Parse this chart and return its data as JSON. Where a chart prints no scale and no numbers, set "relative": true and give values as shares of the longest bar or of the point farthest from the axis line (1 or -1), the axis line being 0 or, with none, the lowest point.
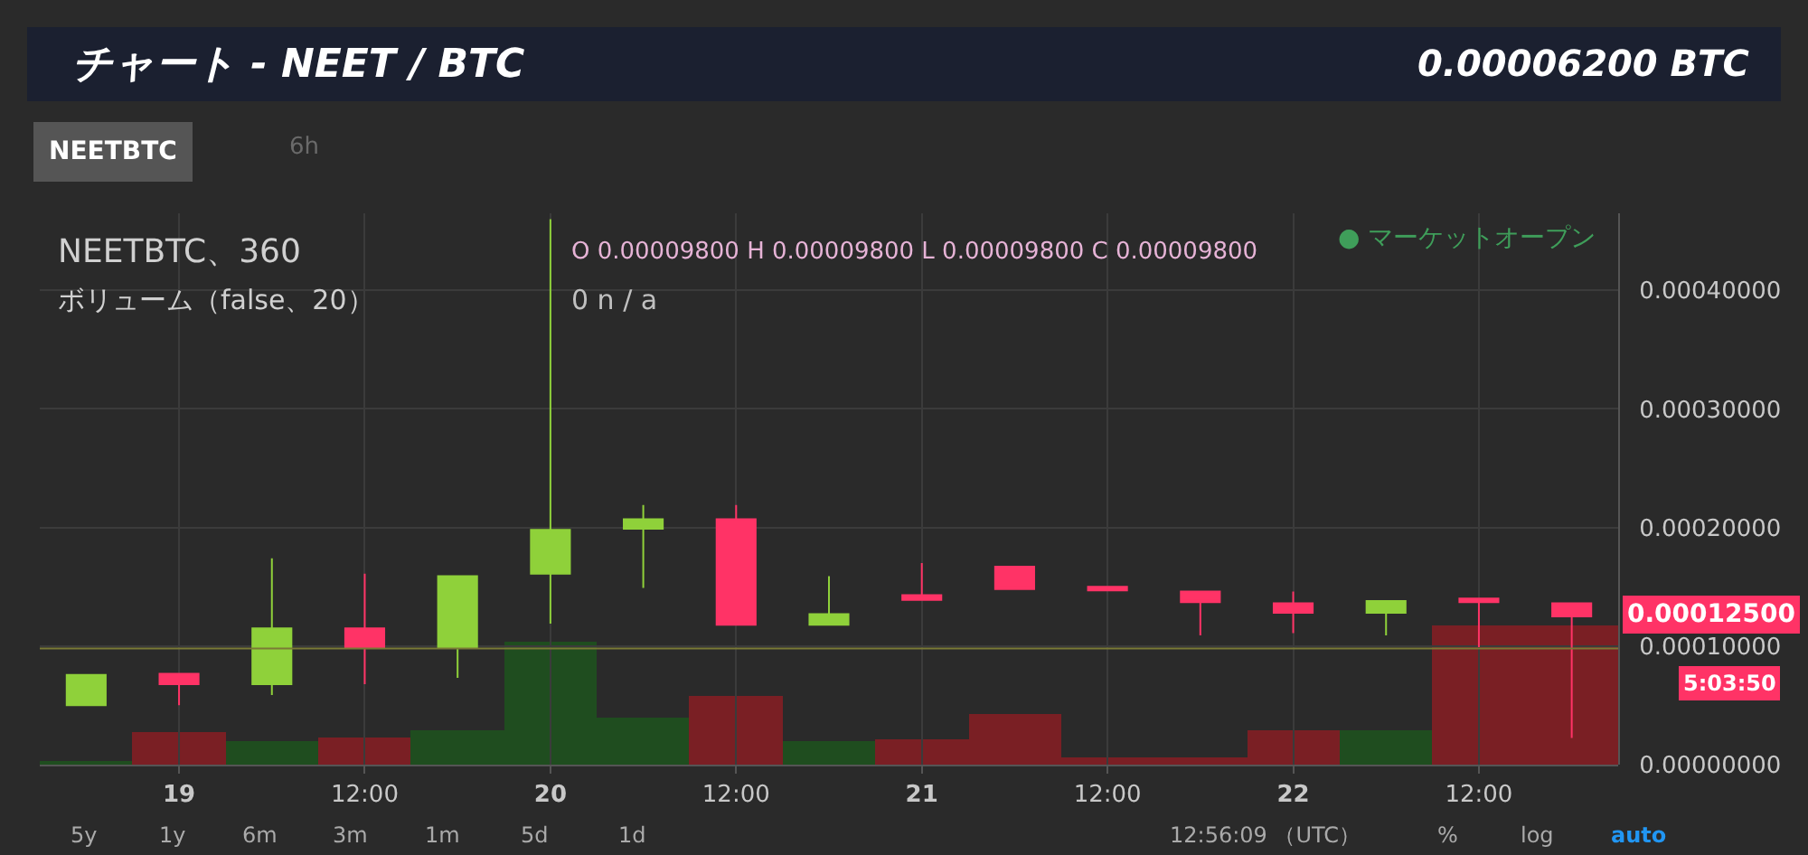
{
  "chart_data": [
    {
      "type": "candlestick",
      "title": "チャート - NEET / BTC",
      "subtitle": "0.00006200 BTC",
      "categories": [
        null,
        "19",
        null,
        "12:00",
        null,
        "20",
        null,
        "12:00",
        null,
        "21",
        null,
        "12:00",
        null,
        "22",
        null,
        "12:00",
        null
      ],
      "ohlc": [
        [
          5.02e-05,
          7.56e-05,
          5.02e-05,
          7.56e-05
        ],
        [
          7.67e-05,
          7.67e-05,
          5.02e-05,
          6.79e-05
        ],
        [
          6.79e-05,
          0.000174,
          5.87e-05,
          0.000115
        ],
        [
          0.000115,
          0.000161,
          6.79e-05,
          9.86e-05
        ],
        [
          9.86e-05,
          0.000159,
          7.31e-05,
          0.000159
        ],
        [
          0.000161,
          0.00046,
          0.000119,
          0.000198
        ],
        [
          0.000199,
          0.000219,
          0.000149,
          0.000207
        ],
        [
          0.000207,
          0.000219,
          0.000118,
          0.000118
        ],
        [
          0.000118,
          0.000159,
          0.000118,
          0.000127
        ],
        [
          0.000143,
          0.00017,
          0.000139,
          0.000139
        ],
        [
          0.000167,
          0.000167,
          0.000148,
          0.000148
        ],
        [
          0.00015,
          0.00015,
          0.000147,
          0.000147
        ],
        [
          0.000146,
          0.000146,
          0.000109,
          0.000137
        ],
        [
          0.000136,
          0.000146,
          0.000111,
          0.000128
        ],
        [
          0.000128,
          0.000138,
          0.000109,
          0.000138
        ],
        [
          0.00014,
          0.00014,
          9.91e-05,
          0.000137
        ],
        [
          0.000136,
          0.000136,
          2.24e-05,
          0.000125
        ]
      ],
      "colors": [
        "#8fd13a",
        "#ff3366",
        "#8fd13a",
        "#ff3366",
        "#8fd13a",
        "#8fd13a",
        "#8fd13a",
        "#ff3366",
        "#8fd13a",
        "#ff3366",
        "#ff3366",
        "#ff3366",
        "#ff3366",
        "#ff3366",
        "#8fd13a",
        "#ff3366",
        "#ff3366"
      ],
      "ylim": [
        0,
        0.000465
      ],
      "yticks": [
        {
          "value": 0,
          "label": "0.00000000"
        },
        {
          "value": 0.0001,
          "label": "0.00010000"
        },
        {
          "value": 0.0002,
          "label": "0.00020000"
        },
        {
          "value": 0.0003,
          "label": "0.00030000"
        },
        {
          "value": 0.0004,
          "label": "0.00040000"
        }
      ],
      "grid": true,
      "ref_lines": [
        {
          "axis": "y",
          "value": 9.8e-05,
          "color": "#7a7a36"
        }
      ],
      "annotations": [
        "NEETBTC",
        "6h",
        "NEETBTC、360",
        "O 0.00009800 H 0.00009800 L 0.00009800 C 0.00009800",
        "● マーケットオープン",
        "0.00012500",
        "5:03:50",
        "5y",
        "1y",
        "6m",
        "3m",
        "1m",
        "5d",
        "1d",
        "12:56:09 （UTC）",
        "%",
        "log",
        "auto"
      ]
    },
    {
      "type": "bar",
      "categories": [
        null,
        null,
        null,
        null,
        null,
        null,
        null,
        null,
        null,
        null,
        null,
        null,
        null,
        null,
        null,
        null,
        null
      ],
      "values": [
        0.03,
        0.23,
        0.17,
        0.2,
        0.25,
        0.88,
        0.34,
        0.49,
        0.17,
        0.18,
        0.36,
        0.05,
        0.05,
        0.25,
        0.25,
        1,
        1
      ],
      "colors": [
        "#1f4d1f",
        "#7a1f24",
        "#1f4d1f",
        "#7a1f24",
        "#1f4d1f",
        "#1f4d1f",
        "#1f4d1f",
        "#7a1f24",
        "#1f4d1f",
        "#7a1f24",
        "#7a1f24",
        "#7a1f24",
        "#7a1f24",
        "#7a1f24",
        "#1f4d1f",
        "#7a1f24",
        "#7a1f24"
      ],
      "relative": true,
      "annotations": [
        "ボリューム（false、20）",
        "0 n / a"
      ]
    }
  ]
}
